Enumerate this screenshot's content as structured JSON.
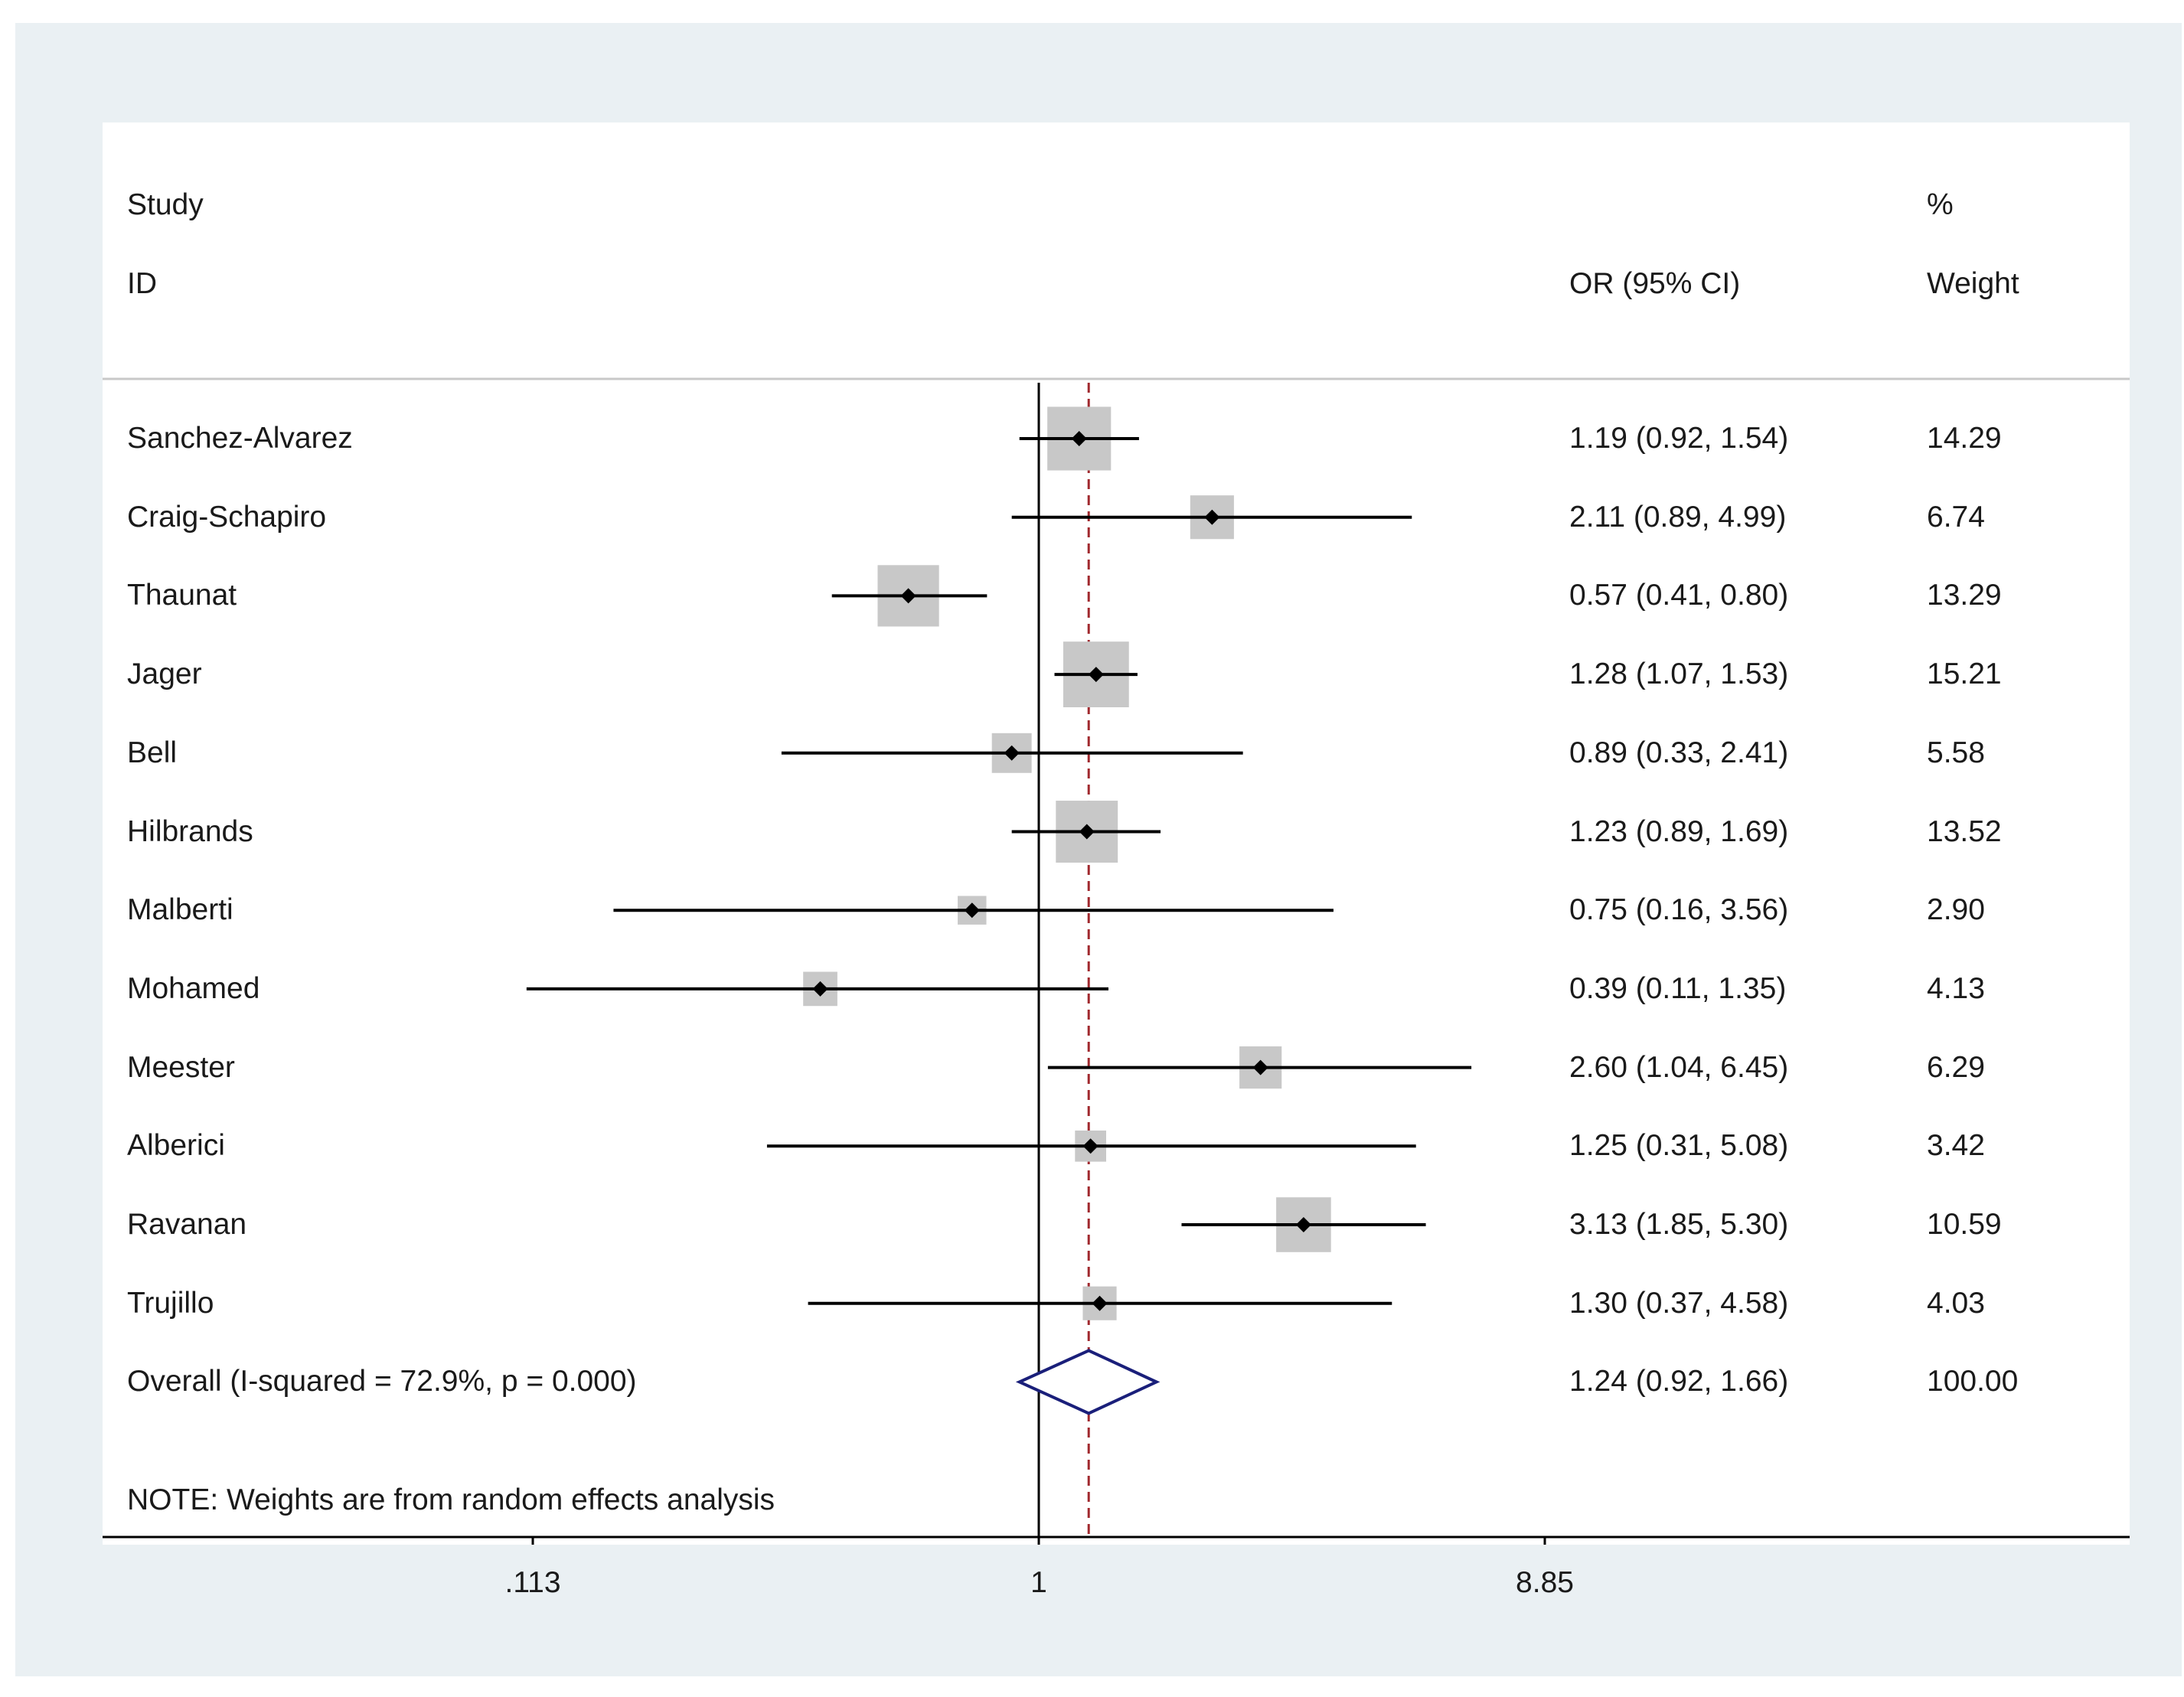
{
  "headers": {
    "study": "Study",
    "id": "ID",
    "or": "OR (95% CI)",
    "percent": "%",
    "weight": "Weight"
  },
  "note": "NOTE: Weights are from random effects analysis",
  "colors": {
    "frame": "#eaf0f3",
    "box": "#c8c8c8",
    "line": "#000000",
    "reference": "#a0282d",
    "diamond": "#1a1f7a"
  },
  "chart_data": {
    "type": "forest",
    "scale": "log",
    "xlim": [
      0.113,
      8.85
    ],
    "ticks": [
      {
        "value": 0.113,
        "label": ".113"
      },
      {
        "value": 1,
        "label": "1"
      },
      {
        "value": 8.85,
        "label": "8.85"
      }
    ],
    "null_line": 1,
    "pooled_line": 1.24,
    "rows": [
      {
        "study": "Sanchez-Alvarez",
        "or": 1.19,
        "lo": 0.92,
        "hi": 1.54,
        "ci_text": "1.19 (0.92, 1.54)",
        "weight": 14.29,
        "weight_text": "14.29"
      },
      {
        "study": "Craig-Schapiro",
        "or": 2.11,
        "lo": 0.89,
        "hi": 4.99,
        "ci_text": "2.11 (0.89, 4.99)",
        "weight": 6.74,
        "weight_text": "6.74"
      },
      {
        "study": "Thaunat",
        "or": 0.57,
        "lo": 0.41,
        "hi": 0.8,
        "ci_text": "0.57 (0.41, 0.80)",
        "weight": 13.29,
        "weight_text": "13.29"
      },
      {
        "study": "Jager",
        "or": 1.28,
        "lo": 1.07,
        "hi": 1.53,
        "ci_text": "1.28 (1.07, 1.53)",
        "weight": 15.21,
        "weight_text": "15.21"
      },
      {
        "study": "Bell",
        "or": 0.89,
        "lo": 0.33,
        "hi": 2.41,
        "ci_text": "0.89 (0.33, 2.41)",
        "weight": 5.58,
        "weight_text": "5.58"
      },
      {
        "study": "Hilbrands",
        "or": 1.23,
        "lo": 0.89,
        "hi": 1.69,
        "ci_text": "1.23 (0.89, 1.69)",
        "weight": 13.52,
        "weight_text": "13.52"
      },
      {
        "study": "Malberti",
        "or": 0.75,
        "lo": 0.16,
        "hi": 3.56,
        "ci_text": "0.75 (0.16, 3.56)",
        "weight": 2.9,
        "weight_text": "2.90"
      },
      {
        "study": "Mohamed",
        "or": 0.39,
        "lo": 0.11,
        "hi": 1.35,
        "ci_text": "0.39 (0.11, 1.35)",
        "weight": 4.13,
        "weight_text": "4.13"
      },
      {
        "study": "Meester",
        "or": 2.6,
        "lo": 1.04,
        "hi": 6.45,
        "ci_text": "2.60 (1.04, 6.45)",
        "weight": 6.29,
        "weight_text": "6.29"
      },
      {
        "study": "Alberici",
        "or": 1.25,
        "lo": 0.31,
        "hi": 5.08,
        "ci_text": "1.25 (0.31, 5.08)",
        "weight": 3.42,
        "weight_text": "3.42"
      },
      {
        "study": "Ravanan",
        "or": 3.13,
        "lo": 1.85,
        "hi": 5.3,
        "ci_text": "3.13 (1.85, 5.30)",
        "weight": 10.59,
        "weight_text": "10.59"
      },
      {
        "study": "Trujillo",
        "or": 1.3,
        "lo": 0.37,
        "hi": 4.58,
        "ci_text": "1.30 (0.37, 4.58)",
        "weight": 4.03,
        "weight_text": "4.03"
      }
    ],
    "overall": {
      "label": "Overall  (I-squared = 72.9%, p = 0.000)",
      "or": 1.24,
      "lo": 0.92,
      "hi": 1.66,
      "ci_text": "1.24 (0.92, 1.66)",
      "weight_text": "100.00"
    }
  }
}
